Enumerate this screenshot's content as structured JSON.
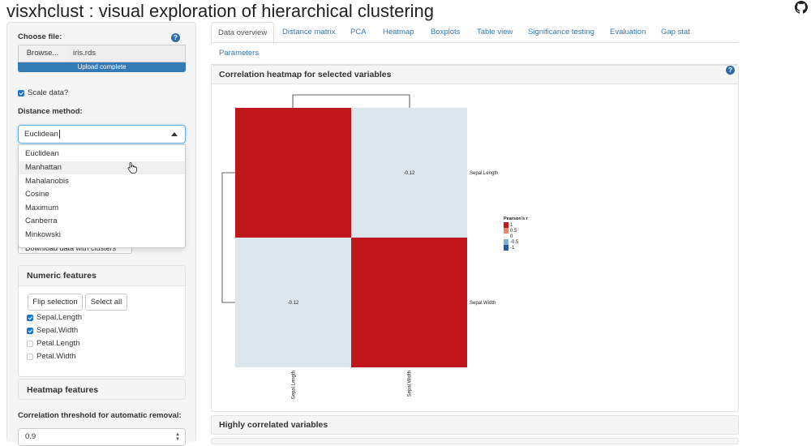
{
  "app": {
    "title": "visxhclust : visual exploration of hierarchical clustering"
  },
  "colors": {
    "accent": "#337ab7",
    "heat_high": "#c0171d",
    "heat_low": "#dbe6ed",
    "check": "#1f73d1"
  },
  "sidebar": {
    "choose_file_label": "Choose file:",
    "browse_label": "Browse...",
    "file_name": "iris.rds",
    "upload_status": "Upload complete",
    "scale_data_label": "Scale data?",
    "scale_data_checked": true,
    "distance_label": "Distance method:",
    "distance_value": "Euclidean",
    "distance_options": [
      "Euclidean",
      "Manhattan",
      "Mahalanobis",
      "Cosine",
      "Maximum",
      "Canberra",
      "Minkowski"
    ],
    "hovered_option": "Manhattan",
    "hidden_button_label": "Download data with clusters",
    "numeric_features": {
      "title": "Numeric features",
      "flip_label": "Flip selection",
      "select_all_label": "Select all",
      "items": [
        {
          "label": "Sepal.Length",
          "checked": true
        },
        {
          "label": "Sepal.Width",
          "checked": true
        },
        {
          "label": "Petal.Length",
          "checked": false
        },
        {
          "label": "Petal.Width",
          "checked": false
        }
      ]
    },
    "heatmap_features_title": "Heatmap features",
    "corr_threshold_label": "Correlation threshold for automatic removal:",
    "corr_threshold_value": "0.9"
  },
  "tabs": [
    {
      "label": "Data overview",
      "active": true
    },
    {
      "label": "Distance matrix"
    },
    {
      "label": "PCA"
    },
    {
      "label": "Heatmap"
    },
    {
      "label": "Boxplots"
    },
    {
      "label": "Table view"
    },
    {
      "label": "Significance testing"
    },
    {
      "label": "Evaluation"
    },
    {
      "label": "Gap stat"
    },
    {
      "label": "Parameters"
    }
  ],
  "main": {
    "panel_title": "Correlation heatmap for selected variables",
    "panel2_title": "Highly correlated variables"
  },
  "heatmap": {
    "variables": [
      "Sepal.Length",
      "Sepal.Width"
    ],
    "matrix": [
      [
        1,
        -0.12
      ],
      [
        -0.12,
        1
      ]
    ],
    "cell_labels": [
      [
        "",
        "-0.12"
      ],
      [
        "-0.12",
        ""
      ]
    ],
    "legend": {
      "title": "Pearson's r",
      "ticks": [
        "1",
        "0.5",
        "0",
        "-0.5",
        "-1"
      ]
    }
  }
}
